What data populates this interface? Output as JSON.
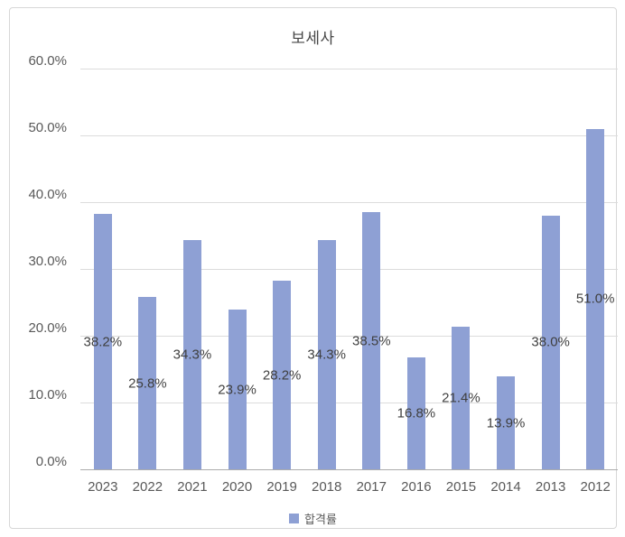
{
  "title": "보세사",
  "legend": {
    "label": "합격률"
  },
  "colors": {
    "bar": "#8ea0d4",
    "gridline": "#dcdcdc",
    "axis_line": "#acacac",
    "border": "#d7d7d7",
    "title_text": "#474747",
    "tick_text": "#595959",
    "data_label_text": "#3f3f3f"
  },
  "chart_data": {
    "type": "bar",
    "title": "보세사",
    "series_name": "합격률",
    "categories": [
      "2023",
      "2022",
      "2021",
      "2020",
      "2019",
      "2018",
      "2017",
      "2016",
      "2015",
      "2014",
      "2013",
      "2012"
    ],
    "values": [
      38.2,
      25.8,
      34.3,
      23.9,
      28.2,
      34.3,
      38.5,
      16.8,
      21.4,
      13.9,
      38.0,
      51.0
    ],
    "data_labels": [
      "38.2%",
      "25.8%",
      "34.3%",
      "23.9%",
      "28.2%",
      "34.3%",
      "38.5%",
      "16.8%",
      "21.4%",
      "13.9%",
      "38.0%",
      "51.0%"
    ],
    "xlabel": "",
    "ylabel": "",
    "ylim": [
      0,
      60
    ],
    "ytick_step": 10,
    "ytick_labels": [
      "0.0%",
      "10.0%",
      "20.0%",
      "30.0%",
      "40.0%",
      "50.0%",
      "60.0%"
    ],
    "grid": true,
    "legend_position": "bottom",
    "data_label_position": "center-of-bar"
  }
}
